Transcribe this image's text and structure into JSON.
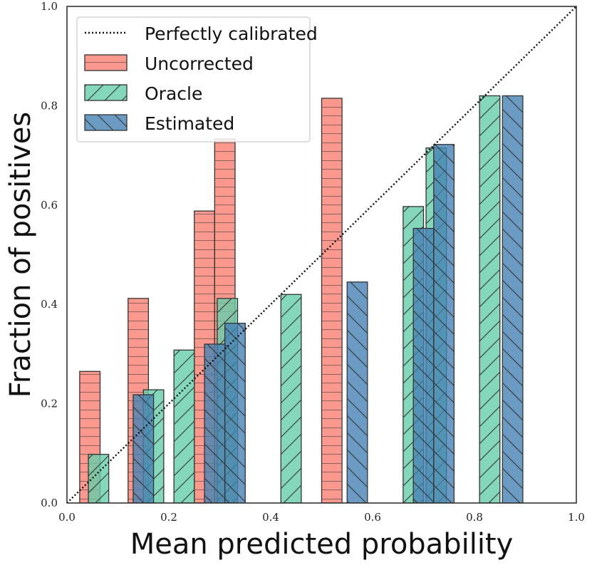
{
  "chart_data": {
    "type": "bar",
    "title": "",
    "xlabel": "Mean predicted probability",
    "ylabel": "Fraction of positives",
    "xlim": [
      0.0,
      1.0
    ],
    "ylim": [
      0.0,
      1.0
    ],
    "xticks": [
      "0.0",
      "0.2",
      "0.4",
      "0.6",
      "0.8",
      "1.0"
    ],
    "yticks": [
      "0.0",
      "0.2",
      "0.4",
      "0.6",
      "0.8",
      "1.0"
    ],
    "grid": false,
    "legend_position": "top-left",
    "bar_width": 0.04,
    "reference_line": {
      "name": "Perfectly calibrated",
      "x": [
        0.0,
        1.0
      ],
      "y": [
        0.0,
        1.0
      ],
      "style": "dotted",
      "color": "#111111"
    },
    "series": [
      {
        "name": "Uncorrected",
        "color": "#fa8072",
        "hatch": "horizontal",
        "points": [
          {
            "x": 0.045,
            "y": 0.265
          },
          {
            "x": 0.14,
            "y": 0.412
          },
          {
            "x": 0.27,
            "y": 0.588
          },
          {
            "x": 0.31,
            "y": 0.733
          },
          {
            "x": 0.52,
            "y": 0.815
          }
        ]
      },
      {
        "name": "Oracle",
        "color": "#66cdaa",
        "hatch": "forward-diagonal",
        "points": [
          {
            "x": 0.062,
            "y": 0.098
          },
          {
            "x": 0.17,
            "y": 0.228
          },
          {
            "x": 0.23,
            "y": 0.308
          },
          {
            "x": 0.315,
            "y": 0.412
          },
          {
            "x": 0.44,
            "y": 0.42
          },
          {
            "x": 0.68,
            "y": 0.597
          },
          {
            "x": 0.725,
            "y": 0.715
          },
          {
            "x": 0.83,
            "y": 0.82
          }
        ]
      },
      {
        "name": "Estimated",
        "color": "#4682b4",
        "hatch": "backward-diagonal",
        "points": [
          {
            "x": 0.15,
            "y": 0.218
          },
          {
            "x": 0.29,
            "y": 0.32
          },
          {
            "x": 0.33,
            "y": 0.362
          },
          {
            "x": 0.57,
            "y": 0.445
          },
          {
            "x": 0.7,
            "y": 0.553
          },
          {
            "x": 0.74,
            "y": 0.722
          },
          {
            "x": 0.875,
            "y": 0.82
          }
        ]
      }
    ]
  }
}
